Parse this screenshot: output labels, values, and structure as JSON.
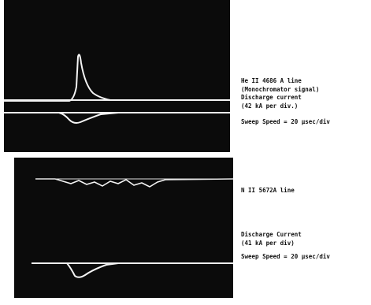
{
  "panels": [
    {
      "caption": [
        "He II 4686 A line",
        "(Monochromator signal)",
        "Discharge current",
        "(42 kA per div.)"
      ],
      "sweep": "Sweep Speed = 20 μsec/div"
    },
    {
      "line": "N II 5672A line",
      "caption": [
        "Discharge Current",
        "(41 kA per div)"
      ],
      "sweep": "Sweep Speed = 20 μsec/div"
    }
  ]
}
